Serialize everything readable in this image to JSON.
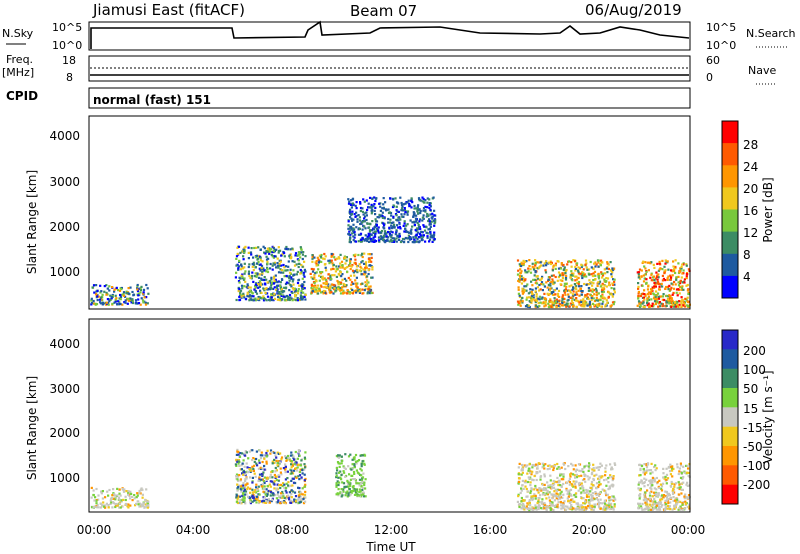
{
  "header": {
    "station": "Jiamusi East (fitACF)",
    "beam": "Beam 07",
    "date": "06/Aug/2019"
  },
  "strip": {
    "nsky_label": "N.Sky",
    "nsky_ticks": [
      "10^5",
      "10^0"
    ],
    "nsearch_label": "N.Search",
    "nsearch_ticks": [
      "10^5",
      "10^0"
    ],
    "freq_label_1": "Freq.",
    "freq_label_2": "[MHz]",
    "freq_ticks": [
      "18",
      "8"
    ],
    "nave_label": "Nave",
    "nave_ticks": [
      "60",
      "0"
    ],
    "cpid_label": "CPID",
    "cpid_value": "normal (fast) 151"
  },
  "axes": {
    "ylabel": "Slant Range [km]",
    "yticks": [
      "4000",
      "3000",
      "2000",
      "1000"
    ],
    "xlabel": "Time UT",
    "xticks": [
      "00:00",
      "04:00",
      "08:00",
      "12:00",
      "16:00",
      "20:00",
      "00:00"
    ]
  },
  "power_scale": {
    "label": "Power [dB]",
    "ticks": [
      "28",
      "24",
      "20",
      "16",
      "12",
      "8",
      "4"
    ],
    "colors": [
      "#ff0000",
      "#ff5a00",
      "#ff9600",
      "#f0c81e",
      "#78c83c",
      "#3c8c64",
      "#1e5aa0",
      "#0000ff"
    ]
  },
  "velocity_scale": {
    "label": "Velocity [m s⁻¹]",
    "ticks": [
      "200",
      "100",
      "50",
      "15",
      "-15",
      "-50",
      "-100",
      "-200"
    ],
    "colors": [
      "#2828c8",
      "#1e5aa0",
      "#3c8c64",
      "#78d23c",
      "#c8c8c0",
      "#f0c81e",
      "#ff9600",
      "#ff5a00",
      "#ff0000"
    ]
  },
  "chart_data": {
    "type": "heatmap",
    "x_range": [
      "00:00",
      "24:00"
    ],
    "y_range_km": [
      180,
      4500
    ],
    "panels": [
      {
        "name": "Power [dB]",
        "regions": [
          {
            "t": [
              0.0,
              2.3
            ],
            "r": [
              300,
              750
            ],
            "level": "low-mid"
          },
          {
            "t": [
              5.8,
              8.6
            ],
            "r": [
              400,
              1600
            ],
            "level": "mid"
          },
          {
            "t": [
              8.8,
              11.3
            ],
            "r": [
              550,
              1450
            ],
            "level": "mid-high"
          },
          {
            "t": [
              10.3,
              13.8
            ],
            "r": [
              1700,
              2700
            ],
            "level": "low"
          },
          {
            "t": [
              17.1,
              21.0
            ],
            "r": [
              250,
              1300
            ],
            "level": "mid-high"
          },
          {
            "t": [
              21.9,
              24.0
            ],
            "r": [
              250,
              1300
            ],
            "level": "high"
          }
        ]
      },
      {
        "name": "Velocity",
        "regions": [
          {
            "t": [
              0.0,
              2.3
            ],
            "r": [
              300,
              750
            ],
            "level": "near-zero"
          },
          {
            "t": [
              5.8,
              8.6
            ],
            "r": [
              400,
              1600
            ],
            "level": "mixed"
          },
          {
            "t": [
              9.8,
              11.0
            ],
            "r": [
              550,
              1500
            ],
            "level": "positive 15-50"
          },
          {
            "t": [
              17.1,
              21.0
            ],
            "r": [
              250,
              1300
            ],
            "level": "near-zero"
          },
          {
            "t": [
              21.9,
              24.0
            ],
            "r": [
              250,
              1300
            ],
            "level": "near-zero"
          }
        ]
      }
    ]
  }
}
